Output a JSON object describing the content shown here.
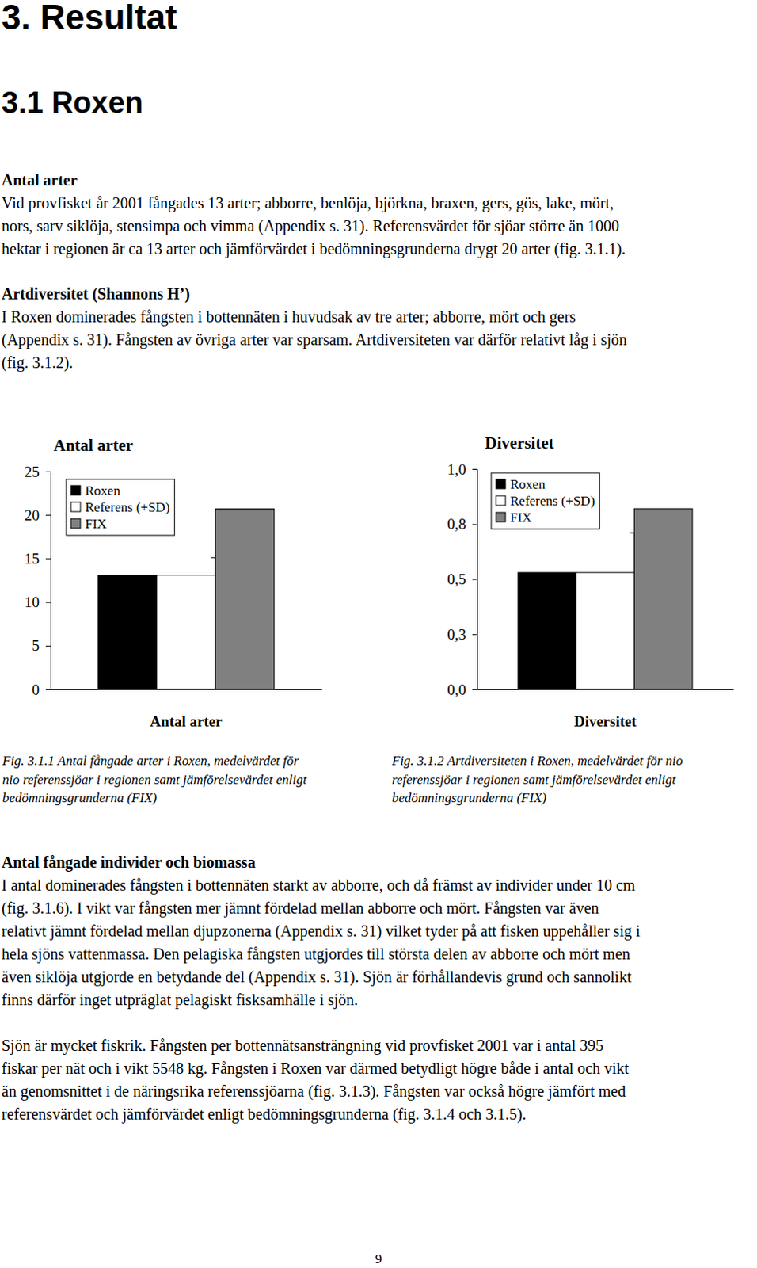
{
  "document": {
    "title": "3. Resultat",
    "subtitle": "3.1 Roxen",
    "sections": [
      {
        "heading": "Antal arter",
        "paragraphs": [
          [
            "Vid provfisket år 2001 fångades 13 arter; abborre, benlöja, björkna, braxen, gers, gös, lake, mört,",
            "nors, sarv siklöja, stensimpa och vimma (Appendix s. 31). Referensvärdet för sjöar större än 1000",
            "hektar i regionen är ca 13 arter och jämförvärdet i bedömningsgrunderna drygt 20 arter (fig. 3.1.1)."
          ]
        ]
      },
      {
        "heading": "Artdiversitet (Shannons H’)",
        "paragraphs": [
          [
            "I Roxen dominerades fångsten i bottennäten i huvudsak av tre arter; abborre, mört och gers",
            "(Appendix s. 31). Fångsten av övriga arter var sparsam. Artdiversiteten var därför relativt låg i sjön",
            "(fig. 3.1.2)."
          ]
        ]
      },
      {
        "heading": "Antal fångade individer och biomassa",
        "paragraphs": [
          [
            "I antal dominerades fångsten i bottennäten starkt av abborre, och då främst av individer under 10 cm",
            "(fig. 3.1.6). I vikt var fångsten mer jämnt fördelad mellan abborre och mört. Fångsten var även",
            "relativt jämnt fördelad mellan djupzonerna (Appendix s. 31) vilket tyder på att fisken uppehåller sig i",
            "hela sjöns vattenmassa. Den pelagiska fångsten utgjordes till största delen av abborre och mört men",
            "även siklöja utgjorde en betydande del (Appendix s. 31). Sjön är förhållandevis grund och sannolikt",
            "finns därför inget utpräglat pelagiskt fisksamhälle i sjön."
          ],
          [
            "Sjön är mycket fiskrik. Fångsten per bottennätsansträngning vid provfisket 2001 var i antal 395",
            "fiskar per nät och i vikt 5548 kg. Fångsten i Roxen var därmed betydligt högre både i antal och vikt",
            "än genomsnittet i de näringsrika referenssjöarna (fig. 3.1.3). Fångsten var också högre jämfört med",
            "referensvärdet och jämförvärdet enligt bedömningsgrunderna (fig. 3.1.4 och 3.1.5)."
          ]
        ]
      }
    ],
    "captions": [
      [
        "Fig. 3.1.1 Antal fångade arter i Roxen, medelvärdet för",
        "nio referenssjöar i regionen samt jämförelsevärdet enligt",
        "bedömningsgrunderna (FIX)"
      ],
      [
        "Fig. 3.1.2 Artdiversiteten i Roxen, medelvärdet för nio",
        "referenssjöar i regionen samt jämförelsevärdet enligt",
        "bedömningsgrunderna (FIX)"
      ]
    ],
    "page_number": 9
  },
  "chart_data": [
    {
      "type": "bar",
      "title": "Antal arter",
      "categories": [
        "Antal arter"
      ],
      "series": [
        {
          "name": "Roxen",
          "color": "#000000",
          "values": [
            13.1
          ]
        },
        {
          "name": "Referens (+SD)",
          "color": "#ffffff",
          "values": [
            13.1
          ],
          "errors": [
            2
          ]
        },
        {
          "name": "FIX",
          "color": "#808080",
          "values": [
            20.7
          ]
        }
      ],
      "ylim": [
        0,
        25
      ],
      "yticks": [
        0,
        5,
        10,
        15,
        20,
        25
      ],
      "legend": "top-left"
    },
    {
      "type": "bar",
      "title": "Diversitet",
      "categories": [
        "Diversitet"
      ],
      "series": [
        {
          "name": "Roxen",
          "color": "#000000",
          "values": [
            0.53
          ]
        },
        {
          "name": "Referens (+SD)",
          "color": "#ffffff",
          "values": [
            0.53
          ],
          "errors": [
            0.18
          ]
        },
        {
          "name": "FIX",
          "color": "#808080",
          "values": [
            0.82
          ]
        }
      ],
      "ylim": [
        0,
        1
      ],
      "yticks": [
        {
          "value": 0,
          "label": "0,0"
        },
        {
          "value": 0.25,
          "label": "0,3"
        },
        {
          "value": 0.5,
          "label": "0,5"
        },
        {
          "value": 0.75,
          "label": "0,8"
        },
        {
          "value": 1,
          "label": "1,0"
        }
      ],
      "legend": "top-left"
    }
  ]
}
